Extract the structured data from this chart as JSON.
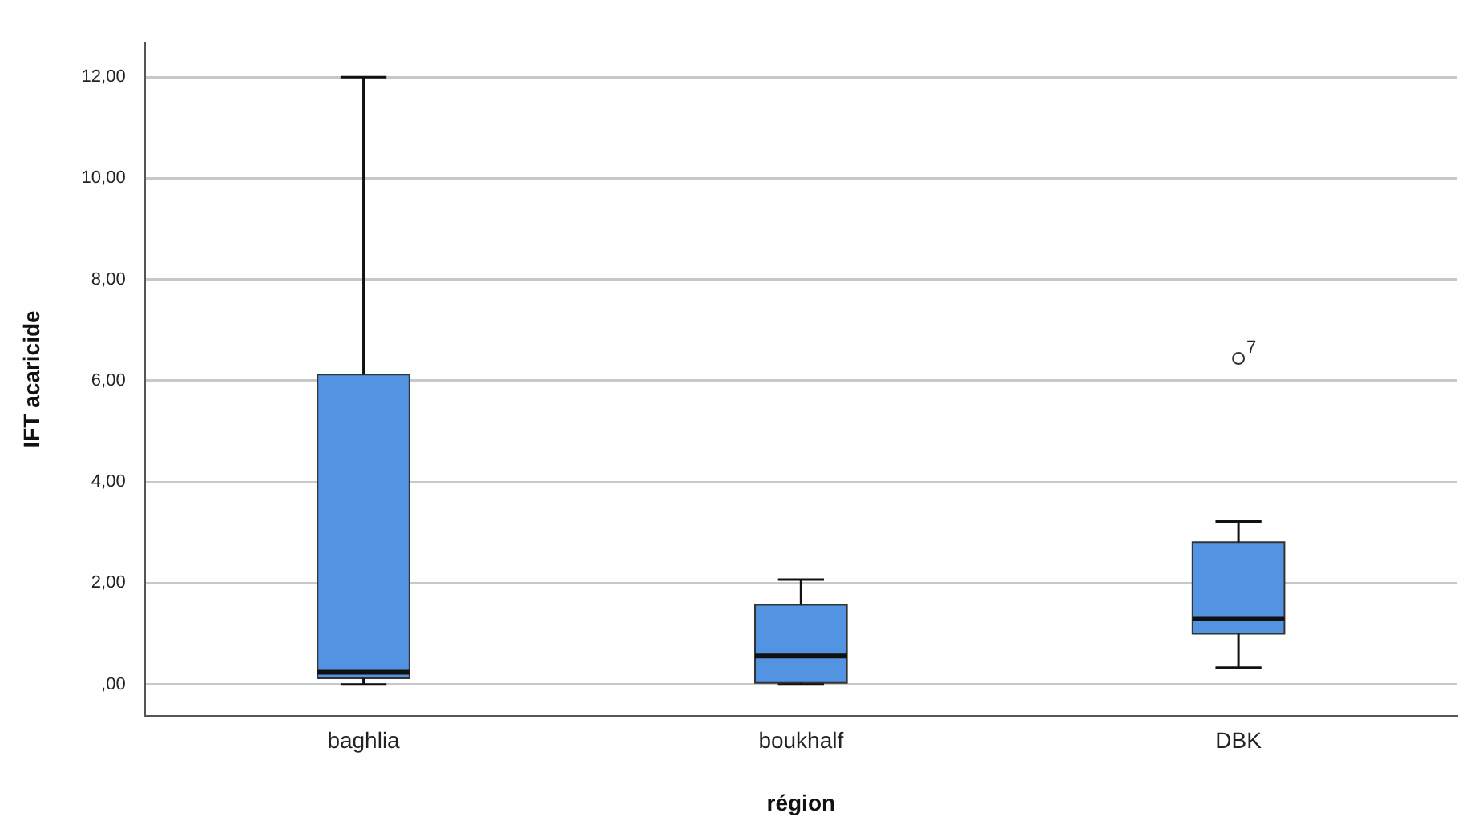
{
  "chart_data": {
    "type": "box",
    "xlabel": "région",
    "ylabel": "IFT acaricide",
    "categories": [
      "baghlia",
      "boukhalf",
      "DBK"
    ],
    "boxes": [
      {
        "low": 0,
        "q1": 0.12,
        "median": 0.24,
        "q3": 6.12,
        "high": 12
      },
      {
        "low": 0,
        "q1": 0.03,
        "median": 0.56,
        "q3": 1.57,
        "high": 2.07
      },
      {
        "low": 0.33,
        "q1": 1.0,
        "median": 1.3,
        "q3": 2.81,
        "high": 3.22,
        "outliers": [
          6.44
        ]
      }
    ],
    "color": "#5294e2",
    "ylim": [
      -0.62,
      12.68
    ],
    "yticks": [
      {
        "value": 0,
        "label": ",00"
      },
      {
        "value": 2,
        "label": "2,00"
      },
      {
        "value": 4,
        "label": "4,00"
      },
      {
        "value": 6,
        "label": "6,00"
      },
      {
        "value": 8,
        "label": "8,00"
      },
      {
        "value": 10,
        "label": "10,00"
      },
      {
        "value": 12,
        "label": "12,00"
      }
    ],
    "grid": "y",
    "legend": false,
    "marker": "circle",
    "annotations": [
      "7"
    ]
  }
}
